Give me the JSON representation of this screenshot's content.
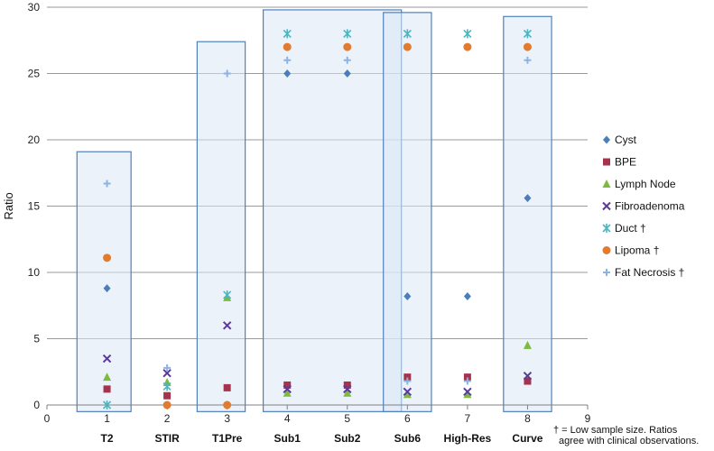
{
  "chart_data": {
    "type": "scatter",
    "title": "",
    "xlabel": "",
    "ylabel": "Ratio",
    "xlim": [
      0,
      9
    ],
    "ylim": [
      0,
      30
    ],
    "x_ticks": [
      0,
      1,
      2,
      3,
      4,
      5,
      6,
      7,
      8,
      9
    ],
    "y_ticks": [
      0,
      5,
      10,
      15,
      20,
      25,
      30
    ],
    "grid": "horizontal",
    "legend_position": "right",
    "categories": [
      {
        "x": 1,
        "label": "T2"
      },
      {
        "x": 2,
        "label": "STIR"
      },
      {
        "x": 3,
        "label": "T1Pre"
      },
      {
        "x": 4,
        "label": "Sub1"
      },
      {
        "x": 5,
        "label": "Sub2"
      },
      {
        "x": 6,
        "label": "Sub6"
      },
      {
        "x": 7,
        "label": "High-Res"
      },
      {
        "x": 8,
        "label": "Curve"
      }
    ],
    "highlight_boxes": [
      {
        "x_from": 0.5,
        "x_to": 1.4,
        "y_top": 19.1
      },
      {
        "x_from": 2.5,
        "x_to": 3.3,
        "y_top": 27.4
      },
      {
        "x_from": 3.6,
        "x_to": 5.9,
        "y_top": 29.8
      },
      {
        "x_from": 5.6,
        "x_to": 6.4,
        "y_top": 29.6
      },
      {
        "x_from": 7.6,
        "x_to": 8.4,
        "y_top": 29.3
      }
    ],
    "series": [
      {
        "name": "Cyst",
        "marker": "diamond",
        "color": "#4A7EBB",
        "points": [
          [
            1,
            8.8
          ],
          [
            4,
            25
          ],
          [
            5,
            25
          ],
          [
            6,
            8.2
          ],
          [
            7,
            8.2
          ],
          [
            8,
            15.6
          ]
        ]
      },
      {
        "name": "BPE",
        "marker": "square",
        "color": "#A5334E",
        "points": [
          [
            1,
            1.2
          ],
          [
            2,
            0.7
          ],
          [
            3,
            1.3
          ],
          [
            4,
            1.5
          ],
          [
            5,
            1.5
          ],
          [
            6,
            2.1
          ],
          [
            7,
            2.1
          ],
          [
            8,
            1.8
          ]
        ]
      },
      {
        "name": "Lymph Node",
        "marker": "triangle",
        "color": "#7DBA3E",
        "points": [
          [
            1,
            2.1
          ],
          [
            2,
            1.7
          ],
          [
            3,
            8.1
          ],
          [
            4,
            0.9
          ],
          [
            5,
            0.9
          ],
          [
            6,
            0.8
          ],
          [
            7,
            0.8
          ],
          [
            8,
            4.5
          ]
        ]
      },
      {
        "name": "Fibroadenoma",
        "marker": "x",
        "color": "#5B3A9A",
        "points": [
          [
            1,
            3.5
          ],
          [
            2,
            2.4
          ],
          [
            3,
            6.0
          ],
          [
            4,
            1.2
          ],
          [
            5,
            1.2
          ],
          [
            6,
            1.0
          ],
          [
            7,
            1.0
          ],
          [
            8,
            2.2
          ]
        ]
      },
      {
        "name": "Duct †",
        "marker": "asterisk",
        "color": "#4BB5C1",
        "points": [
          [
            1,
            0.0
          ],
          [
            2,
            1.4
          ],
          [
            3,
            8.3
          ],
          [
            4,
            28
          ],
          [
            5,
            28
          ],
          [
            6,
            28
          ],
          [
            7,
            28
          ],
          [
            8,
            28
          ]
        ]
      },
      {
        "name": "Lipoma †",
        "marker": "circle",
        "color": "#E07B30",
        "points": [
          [
            1,
            11.1
          ],
          [
            2,
            0.0
          ],
          [
            3,
            0.0
          ],
          [
            4,
            27
          ],
          [
            5,
            27
          ],
          [
            6,
            27
          ],
          [
            7,
            27
          ],
          [
            8,
            27
          ]
        ]
      },
      {
        "name": "Fat Necrosis †",
        "marker": "plus",
        "color": "#8DB3E2",
        "points": [
          [
            1,
            16.7
          ],
          [
            2,
            2.8
          ],
          [
            3,
            25
          ],
          [
            4,
            26
          ],
          [
            5,
            26
          ],
          [
            6,
            1.8
          ],
          [
            7,
            1.8
          ],
          [
            8,
            26
          ]
        ]
      }
    ],
    "footnote": [
      "† = Low sample size. Ratios",
      "agree with clinical observations."
    ]
  }
}
